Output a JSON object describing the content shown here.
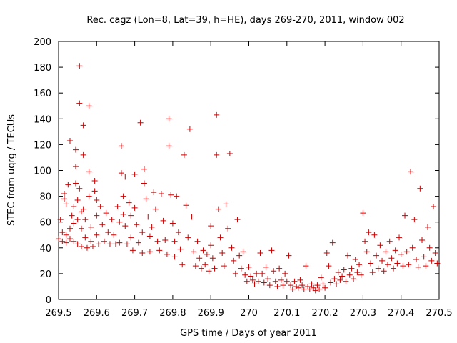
{
  "chart_data": {
    "type": "scatter",
    "title": "Rec. cagz (Lon=8, Lat=39, h=HE), days 269-270, 2011, window 002",
    "xlabel": "GPS time / Days of year 2011",
    "ylabel": "STEC from uqrg / TECUs",
    "xlim": [
      269.5,
      270.5
    ],
    "ylim": [
      0,
      200
    ],
    "xticks": [
      "269.5",
      "269.6",
      "269.7",
      "269.8",
      "269.9",
      "270",
      "270.1",
      "270.2",
      "270.3",
      "270.4",
      "270.5"
    ],
    "yticks": [
      "0",
      "20",
      "40",
      "60",
      "80",
      "100",
      "120",
      "140",
      "160",
      "180",
      "200"
    ],
    "grid": false,
    "marker": "+",
    "marker_color": "#cc0000",
    "series": [
      {
        "points": [
          [
            269.5,
            47
          ],
          [
            269.505,
            62
          ],
          [
            269.51,
            45
          ],
          [
            269.51,
            52
          ],
          [
            269.515,
            78
          ],
          [
            269.515,
            82
          ],
          [
            269.52,
            44
          ],
          [
            269.52,
            50
          ],
          [
            269.52,
            74
          ],
          [
            269.525,
            89
          ],
          [
            269.53,
            123
          ],
          [
            269.53,
            55
          ],
          [
            269.53,
            47
          ],
          [
            269.535,
            65
          ],
          [
            269.54,
            72
          ],
          [
            269.54,
            59
          ],
          [
            269.54,
            45
          ],
          [
            269.545,
            103
          ],
          [
            269.545,
            116
          ],
          [
            269.545,
            90
          ],
          [
            269.55,
            77
          ],
          [
            269.55,
            62
          ],
          [
            269.55,
            43
          ],
          [
            269.555,
            181
          ],
          [
            269.555,
            152
          ],
          [
            269.555,
            86
          ],
          [
            269.56,
            68
          ],
          [
            269.56,
            55
          ],
          [
            269.56,
            41
          ],
          [
            269.565,
            135
          ],
          [
            269.565,
            112
          ],
          [
            269.565,
            70
          ],
          [
            269.57,
            62
          ],
          [
            269.57,
            48
          ],
          [
            269.575,
            40
          ],
          [
            269.58,
            150
          ],
          [
            269.58,
            99
          ],
          [
            269.58,
            80
          ],
          [
            269.585,
            56
          ],
          [
            269.585,
            45
          ],
          [
            269.59,
            41
          ],
          [
            269.595,
            92
          ],
          [
            269.595,
            84
          ],
          [
            269.6,
            77
          ],
          [
            269.6,
            65
          ],
          [
            269.6,
            50
          ],
          [
            269.605,
            43
          ],
          [
            269.61,
            72
          ],
          [
            269.615,
            58
          ],
          [
            269.62,
            45
          ],
          [
            269.625,
            67
          ],
          [
            269.63,
            52
          ],
          [
            269.635,
            43
          ],
          [
            269.64,
            62
          ],
          [
            269.645,
            50
          ],
          [
            269.65,
            43
          ],
          [
            269.655,
            72
          ],
          [
            269.66,
            60
          ],
          [
            269.66,
            44
          ],
          [
            269.665,
            119
          ],
          [
            269.665,
            98
          ],
          [
            269.67,
            80
          ],
          [
            269.67,
            66
          ],
          [
            269.675,
            95
          ],
          [
            269.675,
            57
          ],
          [
            269.68,
            43
          ],
          [
            269.685,
            75
          ],
          [
            269.69,
            65
          ],
          [
            269.69,
            48
          ],
          [
            269.695,
            38
          ],
          [
            269.7,
            97
          ],
          [
            269.7,
            71
          ],
          [
            269.705,
            58
          ],
          [
            269.71,
            44
          ],
          [
            269.715,
            137
          ],
          [
            269.72,
            52
          ],
          [
            269.72,
            36
          ],
          [
            269.725,
            101
          ],
          [
            269.725,
            90
          ],
          [
            269.73,
            78
          ],
          [
            269.735,
            64
          ],
          [
            269.74,
            49
          ],
          [
            269.74,
            37
          ],
          [
            269.745,
            56
          ],
          [
            269.75,
            83
          ],
          [
            269.755,
            70
          ],
          [
            269.76,
            45
          ],
          [
            269.765,
            38
          ],
          [
            269.77,
            82
          ],
          [
            269.775,
            61
          ],
          [
            269.78,
            46
          ],
          [
            269.785,
            35
          ],
          [
            269.79,
            140
          ],
          [
            269.79,
            119
          ],
          [
            269.795,
            81
          ],
          [
            269.8,
            59
          ],
          [
            269.805,
            45
          ],
          [
            269.805,
            33
          ],
          [
            269.81,
            80
          ],
          [
            269.815,
            52
          ],
          [
            269.82,
            39
          ],
          [
            269.825,
            27
          ],
          [
            269.83,
            112
          ],
          [
            269.835,
            73
          ],
          [
            269.84,
            48
          ],
          [
            269.845,
            132
          ],
          [
            269.85,
            64
          ],
          [
            269.855,
            37
          ],
          [
            269.86,
            26
          ],
          [
            269.865,
            45
          ],
          [
            269.87,
            32
          ],
          [
            269.875,
            24
          ],
          [
            269.88,
            38
          ],
          [
            269.885,
            27
          ],
          [
            269.89,
            35
          ],
          [
            269.895,
            22
          ],
          [
            269.9,
            57
          ],
          [
            269.9,
            42
          ],
          [
            269.905,
            32
          ],
          [
            269.91,
            24
          ],
          [
            269.915,
            143
          ],
          [
            269.915,
            112
          ],
          [
            269.92,
            70
          ],
          [
            269.925,
            48
          ],
          [
            269.93,
            36
          ],
          [
            269.935,
            26
          ],
          [
            269.94,
            74
          ],
          [
            269.945,
            55
          ],
          [
            269.95,
            113
          ],
          [
            269.955,
            40
          ],
          [
            269.96,
            30
          ],
          [
            269.965,
            20
          ],
          [
            269.97,
            62
          ],
          [
            269.975,
            34
          ],
          [
            269.98,
            24
          ],
          [
            269.985,
            37
          ],
          [
            269.99,
            19
          ],
          [
            269.995,
            14
          ],
          [
            270.0,
            25
          ],
          [
            270.005,
            18
          ],
          [
            270.01,
            15
          ],
          [
            270.015,
            12
          ],
          [
            270.02,
            20
          ],
          [
            270.025,
            14
          ],
          [
            270.03,
            36
          ],
          [
            270.035,
            20
          ],
          [
            270.04,
            13
          ],
          [
            270.045,
            25
          ],
          [
            270.05,
            16
          ],
          [
            270.055,
            11
          ],
          [
            270.06,
            38
          ],
          [
            270.065,
            22
          ],
          [
            270.07,
            14
          ],
          [
            270.075,
            10
          ],
          [
            270.08,
            24
          ],
          [
            270.085,
            15
          ],
          [
            270.09,
            11
          ],
          [
            270.095,
            20
          ],
          [
            270.1,
            14
          ],
          [
            270.105,
            34
          ],
          [
            270.11,
            11
          ],
          [
            270.115,
            8
          ],
          [
            270.12,
            14
          ],
          [
            270.125,
            10
          ],
          [
            270.13,
            9
          ],
          [
            270.135,
            15
          ],
          [
            270.14,
            11
          ],
          [
            270.145,
            8
          ],
          [
            270.15,
            26
          ],
          [
            270.155,
            10
          ],
          [
            270.16,
            8
          ],
          [
            270.165,
            12
          ],
          [
            270.17,
            9
          ],
          [
            270.175,
            7
          ],
          [
            270.18,
            11
          ],
          [
            270.185,
            8
          ],
          [
            270.19,
            17
          ],
          [
            270.195,
            12
          ],
          [
            270.2,
            9
          ],
          [
            270.205,
            36
          ],
          [
            270.21,
            26
          ],
          [
            270.215,
            13
          ],
          [
            270.22,
            44
          ],
          [
            270.225,
            16
          ],
          [
            270.23,
            12
          ],
          [
            270.235,
            21
          ],
          [
            270.24,
            15
          ],
          [
            270.245,
            18
          ],
          [
            270.25,
            23
          ],
          [
            270.255,
            14
          ],
          [
            270.26,
            34
          ],
          [
            270.265,
            19
          ],
          [
            270.27,
            24
          ],
          [
            270.275,
            16
          ],
          [
            270.28,
            31
          ],
          [
            270.285,
            21
          ],
          [
            270.29,
            27
          ],
          [
            270.295,
            19
          ],
          [
            270.3,
            67
          ],
          [
            270.305,
            45
          ],
          [
            270.31,
            37
          ],
          [
            270.315,
            52
          ],
          [
            270.32,
            28
          ],
          [
            270.325,
            21
          ],
          [
            270.33,
            50
          ],
          [
            270.335,
            34
          ],
          [
            270.34,
            24
          ],
          [
            270.345,
            42
          ],
          [
            270.35,
            30
          ],
          [
            270.355,
            22
          ],
          [
            270.36,
            37
          ],
          [
            270.365,
            27
          ],
          [
            270.37,
            45
          ],
          [
            270.375,
            32
          ],
          [
            270.38,
            24
          ],
          [
            270.385,
            38
          ],
          [
            270.39,
            28
          ],
          [
            270.395,
            48
          ],
          [
            270.4,
            35
          ],
          [
            270.405,
            26
          ],
          [
            270.41,
            65
          ],
          [
            270.415,
            37
          ],
          [
            270.42,
            27
          ],
          [
            270.425,
            99
          ],
          [
            270.43,
            40
          ],
          [
            270.435,
            62
          ],
          [
            270.44,
            31
          ],
          [
            270.445,
            25
          ],
          [
            270.45,
            86
          ],
          [
            270.455,
            46
          ],
          [
            270.46,
            33
          ],
          [
            270.465,
            26
          ],
          [
            270.47,
            56
          ],
          [
            270.475,
            40
          ],
          [
            270.48,
            30
          ],
          [
            270.485,
            72
          ],
          [
            270.49,
            36
          ],
          [
            270.495,
            28
          ]
        ]
      }
    ]
  }
}
